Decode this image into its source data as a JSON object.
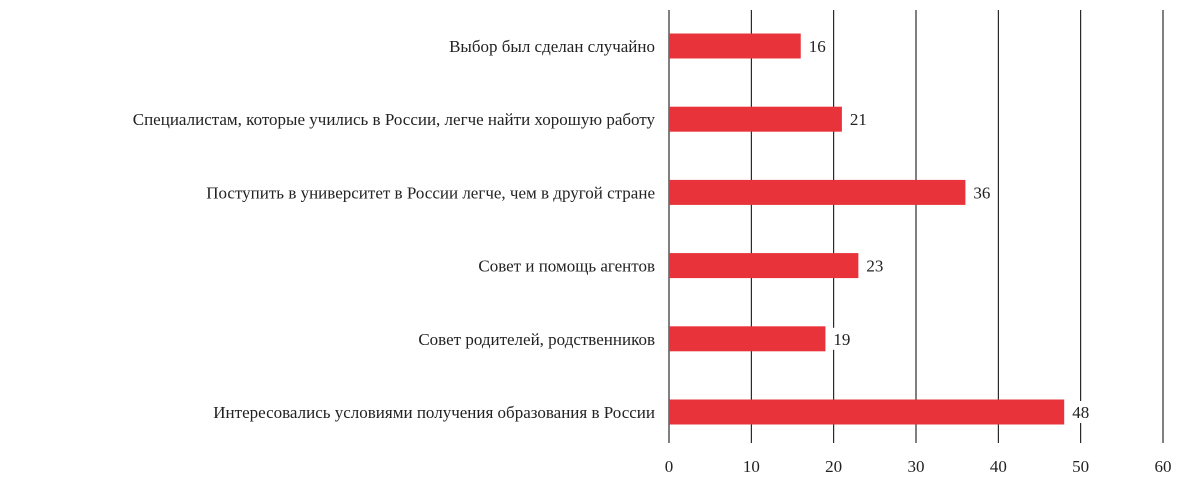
{
  "chart_data": {
    "type": "bar",
    "orientation": "horizontal",
    "categories": [
      "Выбор был сделан случайно",
      "Специалистам, которые учились в России, легче найти хорошую работу",
      "Поступить в университет в России легче, чем в другой стране",
      "Совет и помощь агентов",
      "Совет родителей, родственников",
      "Интересовались условиями получения образования в России"
    ],
    "values": [
      16,
      21,
      36,
      23,
      19,
      48
    ],
    "data_labels": [
      "16",
      "21",
      "36",
      "23",
      "19",
      "48"
    ],
    "xlim": [
      0,
      60
    ],
    "x_ticks": [
      "0",
      "10",
      "20",
      "30",
      "40",
      "50",
      "60"
    ],
    "x_tick_values": [
      0,
      10,
      20,
      30,
      40,
      50,
      60
    ],
    "grid": true,
    "grid_axis": "x",
    "legend": "none",
    "title": "",
    "xlabel": "",
    "ylabel": "",
    "colors": {
      "bar": "#e8333a",
      "grid": "#000000",
      "text": "#222222"
    }
  }
}
